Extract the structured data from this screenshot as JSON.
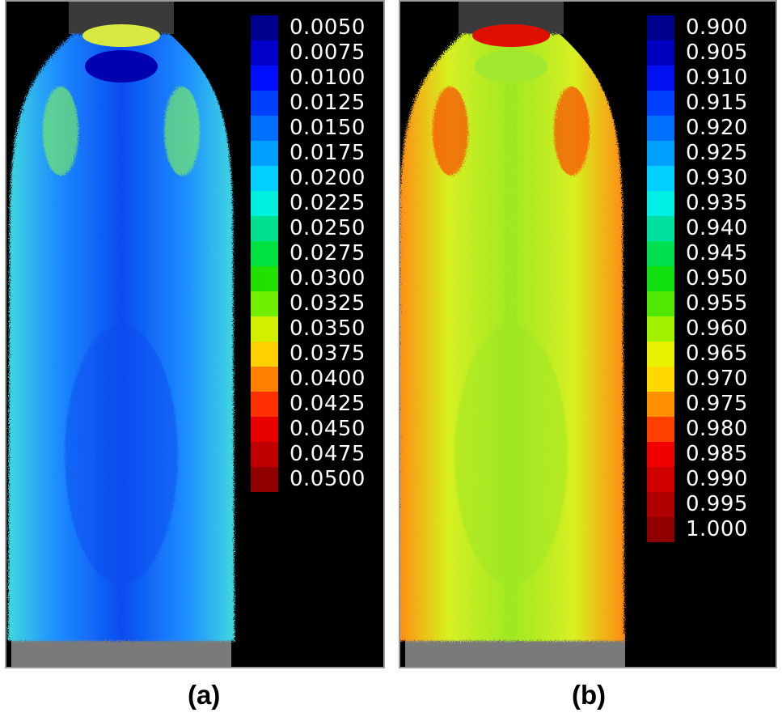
{
  "panels": [
    {
      "id": "a",
      "caption": "(a)",
      "colorbar_labels": [
        "0.0050",
        "0.0075",
        "0.0100",
        "0.0125",
        "0.0150",
        "0.0175",
        "0.0200",
        "0.0225",
        "0.0250",
        "0.0275",
        "0.0300",
        "0.0325",
        "0.0350",
        "0.0375",
        "0.0400",
        "0.0425",
        "0.0450",
        "0.0475",
        "0.0500"
      ],
      "colorbar_colors": [
        "#00008f",
        "#0000c8",
        "#0010ff",
        "#0040ff",
        "#0070ff",
        "#00a0ff",
        "#00d0ff",
        "#00f0e0",
        "#00e090",
        "#00e040",
        "#20e000",
        "#70f000",
        "#d0f000",
        "#ffd000",
        "#ff8000",
        "#ff3000",
        "#e80000",
        "#c00000",
        "#900000"
      ],
      "plume_colors": {
        "core": "#0a4cf0",
        "mid": "#1c8cff",
        "edge": "#40d8e0",
        "hot": "#7cf060",
        "nozzle_rim": "#d8e840",
        "nozzle_hole": "#0000b0"
      }
    },
    {
      "id": "b",
      "caption": "(b)",
      "colorbar_labels": [
        "0.900",
        "0.905",
        "0.910",
        "0.915",
        "0.920",
        "0.925",
        "0.930",
        "0.935",
        "0.940",
        "0.945",
        "0.950",
        "0.955",
        "0.960",
        "0.965",
        "0.970",
        "0.975",
        "0.980",
        "0.985",
        "0.990",
        "0.995",
        "1.000"
      ],
      "colorbar_colors": [
        "#00008f",
        "#0000c0",
        "#0010f0",
        "#0040ff",
        "#0070ff",
        "#00a0ff",
        "#00d0ff",
        "#00f0e8",
        "#00e0a0",
        "#00e050",
        "#10e010",
        "#50e800",
        "#a0f000",
        "#e8f000",
        "#ffd800",
        "#ff9000",
        "#ff4000",
        "#f00000",
        "#d00000",
        "#b00000",
        "#900000"
      ],
      "plume_colors": {
        "core": "#9ee820",
        "mid": "#d8f020",
        "edge": "#ff8a10",
        "hot": "#ff3a00",
        "nozzle_rim": "#e01000",
        "nozzle_hole": "#a0e830"
      }
    }
  ]
}
